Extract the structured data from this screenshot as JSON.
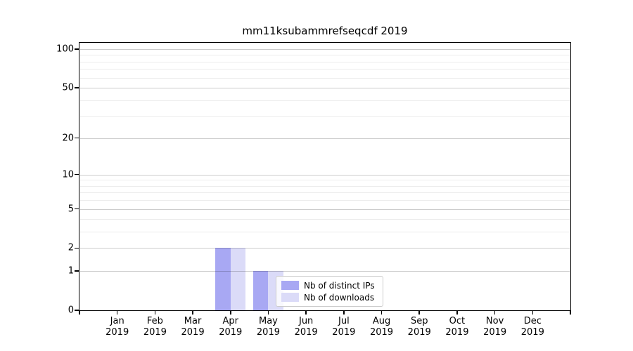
{
  "chart_data": {
    "type": "bar",
    "title": "mm11ksubammrefseqcdf 2019",
    "categories": [
      "Jan",
      "Feb",
      "Mar",
      "Apr",
      "May",
      "Jun",
      "Jul",
      "Aug",
      "Sep",
      "Oct",
      "Nov",
      "Dec"
    ],
    "year_label": "2019",
    "series": [
      {
        "name": "Nb of distinct IPs",
        "color": "#a8a8f3",
        "values": [
          0,
          0,
          0,
          2,
          1,
          0,
          0,
          0,
          0,
          0,
          0,
          0
        ]
      },
      {
        "name": "Nb of downloads",
        "color": "#dbdbf8",
        "values": [
          0,
          0,
          0,
          2,
          1,
          0,
          0,
          0,
          0,
          0,
          0,
          0
        ]
      }
    ],
    "yscale": "log1p",
    "ylim": [
      0,
      112
    ],
    "yticks": [
      0,
      1,
      2,
      5,
      10,
      20,
      50,
      100
    ],
    "yticks_minor": [
      3,
      4,
      6,
      7,
      8,
      9,
      30,
      40,
      60,
      70,
      80,
      90
    ],
    "grid": "horizontal",
    "legend_position": "lower-center-inside",
    "colors": {
      "bar_distinct_ips": "#a8a8f3",
      "bar_downloads": "#dbdbf8",
      "grid_major": "#cccccc",
      "grid_minor": "#ececec",
      "spine": "#000000",
      "text": "#000000",
      "legend_border": "#cccccc"
    }
  }
}
